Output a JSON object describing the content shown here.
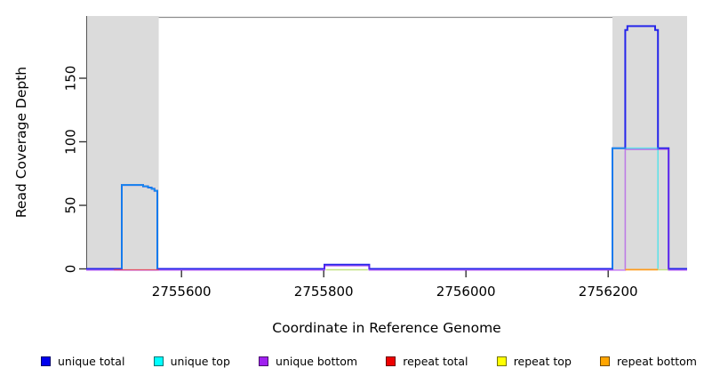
{
  "axes": {
    "x_label": "Coordinate in Reference Genome",
    "y_label": "Read Coverage Depth",
    "x_ticks": [
      {
        "value": 2755600,
        "label": "2755600"
      },
      {
        "value": 2755800,
        "label": "2755800"
      },
      {
        "value": 2756000,
        "label": "2756000"
      },
      {
        "value": 2756200,
        "label": "2756200"
      }
    ],
    "y_ticks": [
      {
        "value": 0,
        "label": "0"
      },
      {
        "value": 50,
        "label": "50"
      },
      {
        "value": 100,
        "label": "100"
      },
      {
        "value": 150,
        "label": "150"
      }
    ],
    "x_range": [
      2755466,
      2756311
    ],
    "y_range": [
      0,
      199
    ]
  },
  "chart_data": {
    "type": "line",
    "title": "",
    "xlabel": "Coordinate in Reference Genome",
    "ylabel": "Read Coverage Depth",
    "xlim": [
      2755466,
      2756311
    ],
    "ylim": [
      0,
      199
    ],
    "grid": false,
    "legend_position": "bottom",
    "shaded_regions": [
      {
        "x_start": 2755466,
        "x_end": 2755568,
        "color": "#DBDBDB"
      },
      {
        "x_start": 2756206,
        "x_end": 2756311,
        "color": "#DBDBDB"
      }
    ],
    "series": [
      {
        "name": "unique total",
        "legend_color": "#0000EE",
        "render": {
          "color": "#2626EA",
          "opacity": 1,
          "width": 2,
          "dy": 0
        },
        "segments": [
          [
            [
              2755466,
              0
            ],
            [
              2755516,
              0
            ],
            [
              2755516,
              66
            ],
            [
              2755546,
              66
            ],
            [
              2755546,
              65
            ],
            [
              2755553,
              65
            ],
            [
              2755553,
              64
            ],
            [
              2755558,
              64
            ],
            [
              2755558,
              63
            ],
            [
              2755562,
              63
            ],
            [
              2755562,
              61.5
            ],
            [
              2755566,
              61.5
            ],
            [
              2755566,
              0
            ],
            [
              2755801,
              0
            ],
            [
              2755801,
              3.3
            ],
            [
              2755864,
              3.3
            ],
            [
              2755864,
              0
            ],
            [
              2756206,
              0
            ],
            [
              2756206,
              95
            ],
            [
              2756224,
              95
            ],
            [
              2756224,
              188
            ],
            [
              2756227,
              188
            ],
            [
              2756227,
              191
            ],
            [
              2756266,
              191
            ],
            [
              2756266,
              188
            ],
            [
              2756270,
              188
            ],
            [
              2756270,
              95
            ],
            [
              2756285,
              95
            ],
            [
              2756285,
              0
            ],
            [
              2756311,
              0
            ]
          ]
        ]
      },
      {
        "name": "unique top",
        "legend_color": "#00FFFF",
        "render": {
          "color": "#00E5F0",
          "opacity": 0.55,
          "width": 1.6,
          "dy": 0
        },
        "segments": [
          [
            [
              2755516,
              0
            ],
            [
              2755516,
              66
            ],
            [
              2755546,
              66
            ],
            [
              2755546,
              65
            ],
            [
              2755553,
              65
            ],
            [
              2755553,
              64
            ],
            [
              2755558,
              64
            ],
            [
              2755558,
              63
            ],
            [
              2755562,
              63
            ],
            [
              2755562,
              61.5
            ],
            [
              2755566,
              61.5
            ],
            [
              2755566,
              0
            ]
          ],
          [
            [
              2756206,
              0
            ],
            [
              2756206,
              95
            ],
            [
              2756270,
              95
            ],
            [
              2756270,
              0
            ]
          ]
        ]
      },
      {
        "name": "unique bottom",
        "legend_color": "#A020F0",
        "render": {
          "color": "#A020F0",
          "opacity": 0.5,
          "width": 1.6,
          "dy": 1.4
        },
        "segments": [
          [
            [
              2755466,
              0
            ],
            [
              2755801,
              0
            ],
            [
              2755801,
              3.3
            ],
            [
              2755864,
              3.3
            ],
            [
              2755864,
              0
            ],
            [
              2756224,
              0
            ],
            [
              2756224,
              95
            ],
            [
              2756285,
              95
            ],
            [
              2756285,
              0
            ],
            [
              2756311,
              0
            ]
          ]
        ]
      },
      {
        "name": "repeat total",
        "legend_color": "#EE0000",
        "render": {
          "color": "#E84B5A",
          "opacity": 0.9,
          "width": 1.3,
          "dy": 1.6
        },
        "segments": [
          [
            [
              2755505,
              0.4
            ],
            [
              2755568,
              0.4
            ]
          ]
        ]
      },
      {
        "name": "repeat top",
        "legend_color": "#FFFF00",
        "render": {
          "color": "#BFE07A",
          "opacity": 0.95,
          "width": 1.4,
          "dy": 1.6
        },
        "segments": [
          [
            [
              2755803,
              0.4
            ],
            [
              2755862,
              0.4
            ]
          ],
          [
            [
              2756270,
              0.4
            ],
            [
              2756284,
              0.4
            ]
          ]
        ]
      },
      {
        "name": "repeat bottom",
        "legend_color": "#FFA500",
        "render": {
          "color": "#FF9C1E",
          "opacity": 1,
          "width": 1.8,
          "dy": 1.8
        },
        "segments": [
          [
            [
              2756224,
              0.6
            ],
            [
              2756270,
              0.6
            ]
          ]
        ]
      }
    ]
  },
  "legend": {
    "items": [
      {
        "label": "unique total",
        "color": "#0000EE"
      },
      {
        "label": "unique top",
        "color": "#00FFFF"
      },
      {
        "label": "unique bottom",
        "color": "#A020F0"
      },
      {
        "label": "repeat total",
        "color": "#EE0000"
      },
      {
        "label": "repeat top",
        "color": "#FFFF00"
      },
      {
        "label": "repeat bottom",
        "color": "#FFA500"
      }
    ]
  },
  "frame": {
    "border_color": "#8C8C8C",
    "axis_color": "#555555",
    "tick_color": "#333333"
  }
}
